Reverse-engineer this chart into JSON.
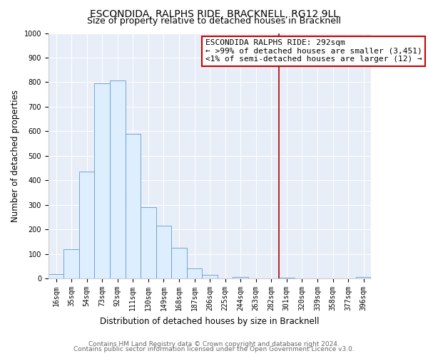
{
  "title": "ESCONDIDA, RALPHS RIDE, BRACKNELL, RG12 9LL",
  "subtitle": "Size of property relative to detached houses in Bracknell",
  "xlabel": "Distribution of detached houses by size in Bracknell",
  "ylabel": "Number of detached properties",
  "bar_labels": [
    "16sqm",
    "35sqm",
    "54sqm",
    "73sqm",
    "92sqm",
    "111sqm",
    "130sqm",
    "149sqm",
    "168sqm",
    "187sqm",
    "206sqm",
    "225sqm",
    "244sqm",
    "263sqm",
    "282sqm",
    "301sqm",
    "320sqm",
    "339sqm",
    "358sqm",
    "377sqm",
    "396sqm"
  ],
  "bar_values": [
    18,
    120,
    435,
    795,
    808,
    590,
    290,
    215,
    125,
    40,
    14,
    0,
    5,
    0,
    0,
    3,
    0,
    0,
    0,
    0,
    5
  ],
  "bar_fill_color": "#ddeeff",
  "bar_edge_color": "#6699cc",
  "plot_bg_color": "#e8eef8",
  "vline_color": "#aa0000",
  "annotation_title": "ESCONDIDA RALPHS RIDE: 292sqm",
  "annotation_line1": "← >99% of detached houses are smaller (3,451)",
  "annotation_line2": "<1% of semi-detached houses are larger (12) →",
  "annotation_box_facecolor": "#ffffff",
  "annotation_border_color": "#cc0000",
  "ylim": [
    0,
    1000
  ],
  "yticks": [
    0,
    100,
    200,
    300,
    400,
    500,
    600,
    700,
    800,
    900,
    1000
  ],
  "title_fontsize": 10,
  "subtitle_fontsize": 9,
  "axis_label_fontsize": 8.5,
  "tick_fontsize": 7,
  "annotation_fontsize": 8,
  "footer_fontsize": 6.5,
  "footer_line1": "Contains HM Land Registry data © Crown copyright and database right 2024.",
  "footer_line2": "Contains public sector information licensed under the Open Government Licence v3.0."
}
